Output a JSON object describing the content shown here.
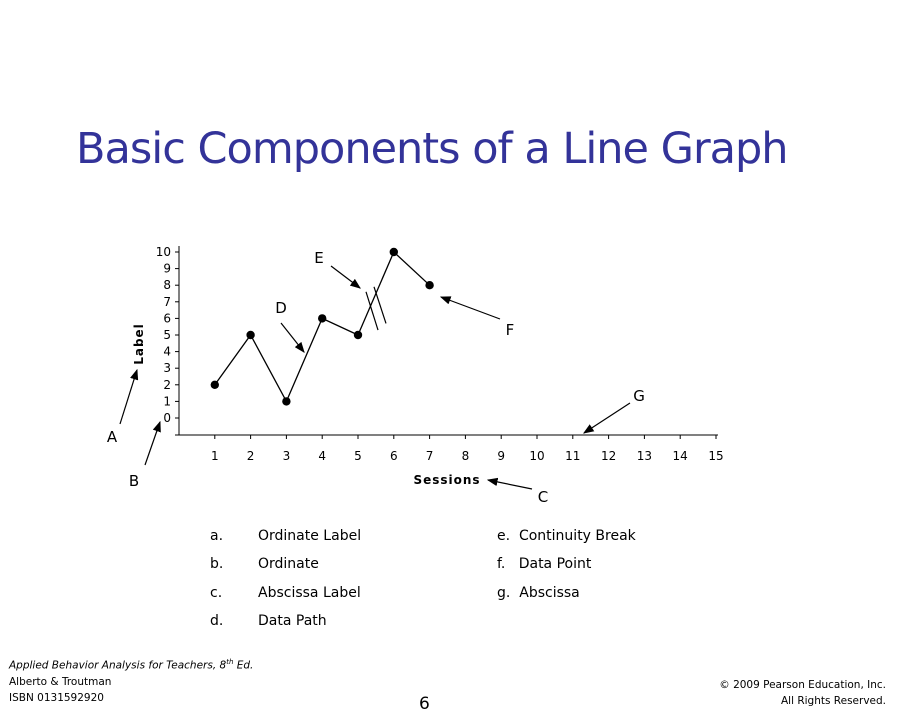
{
  "slide": {
    "title": "Basic Components of a Line Graph",
    "title_color": "#333399"
  },
  "chart_data": {
    "type": "line",
    "xlabel": "Sessions",
    "ylabel": "Label",
    "xlim": [
      0,
      15
    ],
    "ylim": [
      -1,
      10
    ],
    "x_ticks": [
      1,
      2,
      3,
      4,
      5,
      6,
      7,
      8,
      9,
      10,
      11,
      12,
      13,
      14,
      15
    ],
    "y_ticks": [
      0,
      1,
      2,
      3,
      4,
      5,
      6,
      7,
      8,
      9,
      10
    ],
    "segments": [
      {
        "x": [
          1,
          2,
          3,
          4,
          5
        ],
        "y": [
          2,
          5,
          1,
          6,
          5
        ]
      },
      {
        "x": [
          6,
          7
        ],
        "y": [
          10,
          8
        ]
      }
    ],
    "continuity_break_after_session": 5,
    "break_connector": {
      "x": [
        5,
        6
      ],
      "y": [
        5,
        10
      ]
    },
    "grid": false,
    "annotations": [
      "A",
      "B",
      "C",
      "D",
      "E",
      "F",
      "G"
    ]
  },
  "legend": {
    "left": [
      {
        "letter": "a.",
        "text": "Ordinate Label"
      },
      {
        "letter": "b.",
        "text": "Ordinate"
      },
      {
        "letter": "c.",
        "text": "Abscissa Label"
      },
      {
        "letter": "d.",
        "text": "Data Path"
      }
    ],
    "right": [
      {
        "text": "e.  Continuity Break"
      },
      {
        "text": "f.   Data Point"
      },
      {
        "text": "g.  Abscissa"
      }
    ]
  },
  "footer": {
    "book_title": "Applied Behavior Analysis for Teachers, 8",
    "book_sup": "th",
    "book_suffix": " Ed.",
    "authors": "Alberto & Troutman",
    "isbn": "ISBN 0131592920",
    "copyright": "© 2009 Pearson Education, Inc.",
    "rights": "All Rights Reserved.",
    "page_number": "6"
  }
}
